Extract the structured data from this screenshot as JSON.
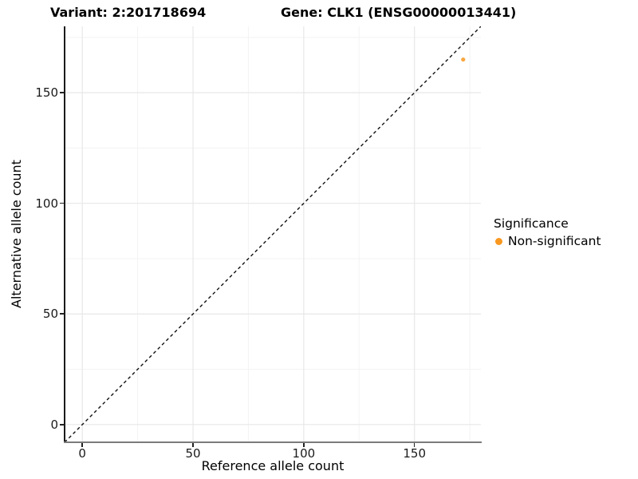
{
  "chart_data": {
    "type": "scatter",
    "title_left": "Variant: 2:201718694",
    "title_right": "Gene: CLK1 (ENSG00000013441)",
    "xlabel": "Reference allele count",
    "ylabel": "Alternative allele count",
    "xlim": [
      -8,
      180
    ],
    "ylim": [
      -8,
      180
    ],
    "x_ticks": [
      0,
      50,
      100,
      150
    ],
    "y_ticks": [
      0,
      50,
      100,
      150
    ],
    "x_minor_ticks": [
      25,
      75,
      125,
      175
    ],
    "y_minor_ticks": [
      25,
      75,
      125,
      175
    ],
    "grid": true,
    "series": [
      {
        "name": "Non-significant",
        "color": "#F89820",
        "point_opacity": 0.85,
        "points": [
          {
            "x": 172,
            "y": 165
          }
        ]
      }
    ],
    "reference_line": {
      "kind": "identity",
      "slope": 1,
      "intercept": 0,
      "style": "dashed",
      "color": "#111111"
    },
    "legend": {
      "title": "Significance",
      "position": "right",
      "entries": [
        {
          "label": "Non-significant",
          "color": "#F89820"
        }
      ]
    },
    "panel_colors": {
      "background": "#ffffff",
      "grid_major": "#e7e7e7",
      "grid_minor": "#f3f3f3",
      "axis_line_y": "#1a1a1a",
      "axis_line_x": "#7b7b7b",
      "tick_color": "#222222",
      "tick_label_color": "#1a1a1a"
    }
  }
}
